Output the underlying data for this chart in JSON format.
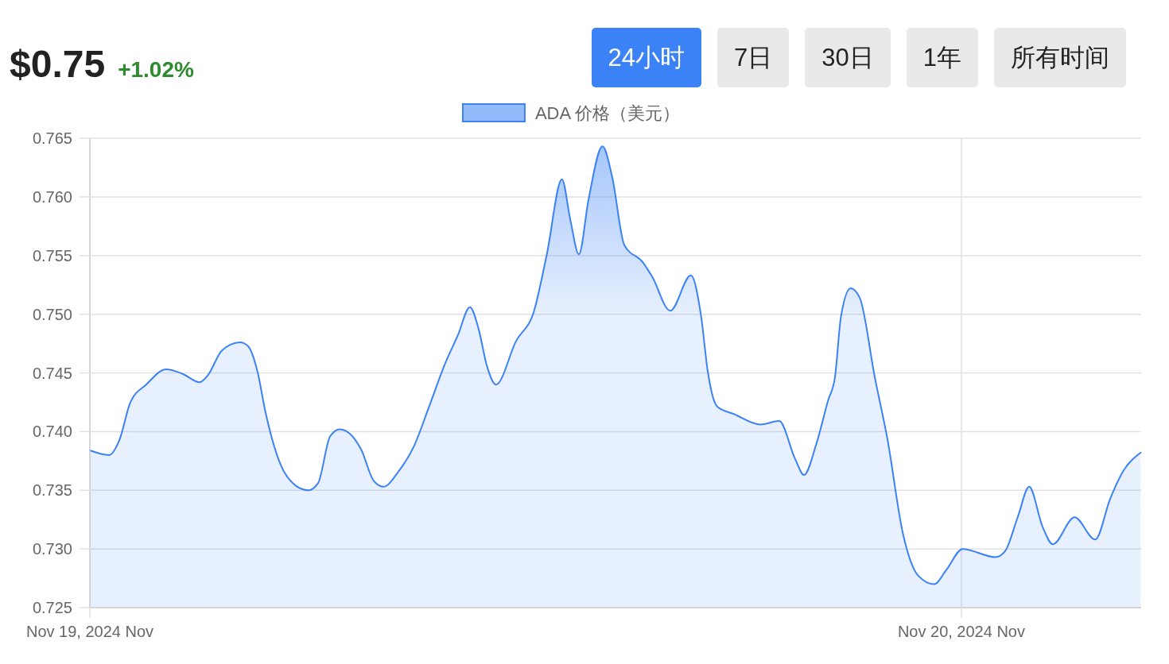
{
  "chart_data": {
    "type": "area",
    "title": "$0.75",
    "subtitle": "+1.02%",
    "annotations": [
      "24小时",
      "7日",
      "30日",
      "1年",
      "所有时间"
    ],
    "x": [
      "2024-11-19T00:00",
      "2024-11-19T00:32",
      "2024-11-19T00:49",
      "2024-11-19T01:07",
      "2024-11-19T01:33",
      "2024-11-19T02:06",
      "2024-11-19T02:34",
      "2024-11-19T03:01",
      "2024-11-19T03:15",
      "2024-11-19T03:38",
      "2024-11-19T04:08",
      "2024-11-19T04:21",
      "2024-11-19T04:37",
      "2024-11-19T04:50",
      "2024-11-19T05:15",
      "2024-11-19T05:40",
      "2024-11-19T06:01",
      "2024-11-19T06:17",
      "2024-11-19T06:37",
      "2024-11-19T06:53",
      "2024-11-19T07:28",
      "2024-11-19T07:49",
      "2024-11-19T08:05",
      "2024-11-19T08:30",
      "2024-11-19T08:55",
      "2024-11-19T09:21",
      "2024-11-19T09:47",
      "2024-11-19T10:08",
      "2024-11-19T10:28",
      "2024-11-19T10:42",
      "2024-11-19T10:56",
      "2024-11-19T11:11",
      "2024-11-19T11:44",
      "2024-11-19T12:14",
      "2024-11-19T12:35",
      "2024-11-19T13:00",
      "2024-11-19T13:14",
      "2024-11-19T13:28",
      "2024-11-19T13:44",
      "2024-11-19T14:07",
      "2024-11-19T14:23",
      "2024-11-19T14:43",
      "2024-11-19T15:14",
      "2024-11-19T15:29",
      "2024-11-19T15:59",
      "2024-11-19T16:33",
      "2024-11-19T16:50",
      "2024-11-19T17:01",
      "2024-11-19T17:17",
      "2024-11-19T17:44",
      "2024-11-19T18:28",
      "2024-11-19T18:59",
      "2024-11-19T19:25",
      "2024-11-19T19:40",
      "2024-11-19T20:00",
      "2024-11-19T20:20",
      "2024-11-19T20:31",
      "2024-11-19T20:41",
      "2024-11-19T20:57",
      "2024-11-19T21:12",
      "2024-11-19T21:37",
      "2024-11-19T21:58",
      "2024-11-19T22:23",
      "2024-11-19T22:49",
      "2024-11-19T23:15",
      "2024-11-19T23:35",
      "2024-11-20T00:02",
      "2024-11-20T00:56",
      "2024-11-20T01:12",
      "2024-11-20T01:33",
      "2024-11-20T01:52",
      "2024-11-20T02:14",
      "2024-11-20T02:31",
      "2024-11-20T03:07",
      "2024-11-20T03:41",
      "2024-11-20T04:06",
      "2024-11-20T04:27",
      "2024-11-20T04:56"
    ],
    "series": [
      {
        "name": "ADA 价格（美元）",
        "color": "#3b82f6",
        "values": [
          0.7384,
          0.738,
          0.7393,
          0.7425,
          0.744,
          0.7453,
          0.7449,
          0.7442,
          0.7448,
          0.7469,
          0.7476,
          0.7473,
          0.7451,
          0.7417,
          0.7372,
          0.7354,
          0.735,
          0.7356,
          0.7396,
          0.7402,
          0.7385,
          0.7358,
          0.7353,
          0.7366,
          0.7387,
          0.7422,
          0.7458,
          0.7482,
          0.7506,
          0.7488,
          0.7456,
          0.744,
          0.7477,
          0.7503,
          0.7551,
          0.7615,
          0.758,
          0.7551,
          0.7598,
          0.7643,
          0.7617,
          0.7559,
          0.7544,
          0.7532,
          0.7503,
          0.7533,
          0.7498,
          0.7451,
          0.7421,
          0.7415,
          0.7406,
          0.7409,
          0.7377,
          0.7363,
          0.7389,
          0.7427,
          0.7446,
          0.7498,
          0.7522,
          0.7514,
          0.7446,
          0.7393,
          0.7314,
          0.7277,
          0.727,
          0.7282,
          0.73,
          0.7293,
          0.7298,
          0.7327,
          0.7353,
          0.7319,
          0.7304,
          0.7327,
          0.7308,
          0.7343,
          0.7366,
          0.7382
        ]
      }
    ],
    "xlim": [
      "2024-11-19T00:00",
      "2024-11-20T04:57"
    ],
    "xticks": [
      {
        "value": "2024-11-19",
        "label": "Nov 19, 2024 Nov"
      },
      {
        "value": "2024-11-20",
        "label": "Nov 20, 2024 Nov"
      }
    ],
    "ylim": [
      0.725,
      0.765
    ],
    "yticks": [
      0.725,
      {
        "value": 0.73,
        "label": "0.730"
      },
      0.735,
      {
        "value": 0.74,
        "label": "0.740"
      },
      0.745,
      {
        "value": 0.75,
        "label": "0.750"
      },
      0.755,
      {
        "value": 0.76,
        "label": "0.760"
      },
      0.765
    ],
    "grid": true,
    "legend": "top"
  }
}
